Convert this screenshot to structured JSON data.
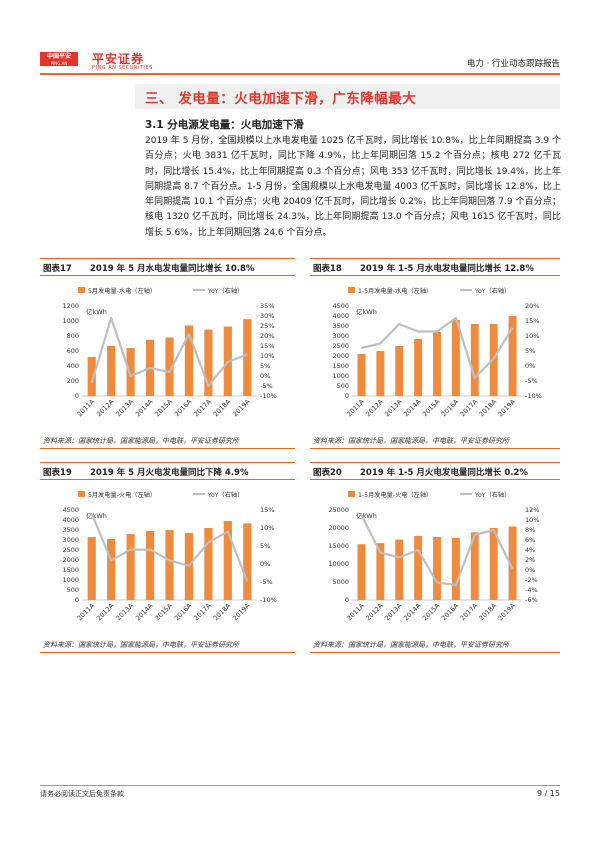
{
  "header": {
    "logo_cn": "中国平安",
    "logo_sub": "PING AN",
    "brand": "平安证券",
    "brand_en": "PING AN SECURITIES",
    "report_type": "电力 · 行业动态跟踪报告"
  },
  "section": {
    "title": "三、  发电量：火电加速下滑，广东降幅最大",
    "subtitle": "3.1  分电源发电量：火电加速下滑",
    "paragraph": "2019 年 5 月份，全国规模以上水电发电量 1025 亿千瓦时，同比增长 10.8%，比上年同期提高 3.9 个百分点；火电 3831 亿千瓦时，同比下降 4.9%，比上年同期回落 15.2 个百分点；核电 272 亿千瓦时，同比增长 15.4%，比上年同期提高 0.3 个百分点；风电 353 亿千瓦时，同比增长 19.4%，比上年同期提高 8.7 个百分点。1-5 月份，全国规模以上水电发电量 4003 亿千瓦时，同比增长 12.8%，比上年同期提高 10.1 个百分点；火电 20409 亿千瓦时，同比增长 0.2%，比上年同期回落 7.9 个百分点；核电 1320 亿千瓦时，同比增长 24.3%，比上年同期提高 13.0 个百分点；风电 1615 亿千瓦时，同比增长 5.6%，比上年同期回落 24.6 个百分点。"
  },
  "colors": {
    "accent": "#e86a1f",
    "bar": "#f08a3c",
    "line": "#bfbfbf",
    "brand_red": "#e2352b"
  },
  "chart_data": [
    {
      "type": "bar",
      "figure_label": "图表17",
      "title": "2019 年 5 月水电发电量同比增长 10.8%",
      "categories": [
        "2011A",
        "2012A",
        "2013A",
        "2014A",
        "2015A",
        "2016A",
        "2017A",
        "2018A",
        "2019A"
      ],
      "series": [
        {
          "name": "5月发电量-水电（左轴）",
          "kind": "bar",
          "axis": "left",
          "values": [
            520,
            670,
            640,
            750,
            780,
            940,
            885,
            925,
            1025
          ]
        },
        {
          "name": "YoY（右轴）",
          "kind": "line",
          "axis": "right",
          "values": [
            -3.5,
            29,
            0,
            4,
            2,
            21,
            -5,
            7,
            10.8
          ]
        }
      ],
      "unit_label": "亿kWh",
      "ylim_left": [
        0,
        1200
      ],
      "yticks_left": [
        0,
        200,
        400,
        600,
        800,
        1000,
        1200
      ],
      "ylim_right": [
        -10,
        35
      ],
      "yticks_right": [
        -10,
        -5,
        0,
        5,
        10,
        15,
        20,
        25,
        30,
        35
      ],
      "source": "资料来源：国家统计局，国家能源局，中电联，平安证券研究所"
    },
    {
      "type": "bar",
      "figure_label": "图表18",
      "title": "2019 年 1-5 月水电发电量同比增长 12.8%",
      "categories": [
        "2011A",
        "2012A",
        "2013A",
        "2014A",
        "2015A",
        "2016A",
        "2017A",
        "2018A",
        "2019A"
      ],
      "series": [
        {
          "name": "1-5月发电量-水电（左轴）",
          "kind": "bar",
          "axis": "left",
          "values": [
            2100,
            2250,
            2500,
            2850,
            3200,
            3800,
            3600,
            3600,
            4003
          ]
        },
        {
          "name": "YoY（右轴）",
          "kind": "line",
          "axis": "right",
          "values": [
            6,
            7.5,
            14,
            11.5,
            11.5,
            16,
            -4,
            2.5,
            12.8
          ]
        }
      ],
      "unit_label": "亿kWh",
      "ylim_left": [
        0,
        4500
      ],
      "yticks_left": [
        0,
        500,
        1000,
        1500,
        2000,
        2500,
        3000,
        3500,
        4000,
        4500
      ],
      "ylim_right": [
        -10,
        20
      ],
      "yticks_right": [
        -10,
        -5,
        0,
        5,
        10,
        15,
        20
      ],
      "source": "资料来源：国家统计局，国家能源局，中电联，平安证券研究所"
    },
    {
      "type": "bar",
      "figure_label": "图表19",
      "title": "2019 年 5 月火电发电量同比下降 4.9%",
      "categories": [
        "2011A",
        "2012A",
        "2013A",
        "2014A",
        "2015A",
        "2016A",
        "2017A",
        "2018A",
        "2019A"
      ],
      "series": [
        {
          "name": "5月发电量-火电（左轴）",
          "kind": "bar",
          "axis": "left",
          "values": [
            3150,
            3050,
            3300,
            3450,
            3500,
            3350,
            3600,
            3950,
            3831
          ]
        },
        {
          "name": "YoY（右轴）",
          "kind": "line",
          "axis": "right",
          "values": [
            14,
            1,
            4,
            4,
            1,
            -0.5,
            6,
            9,
            -4.9
          ]
        }
      ],
      "unit_label": "亿kWh",
      "ylim_left": [
        0,
        4500
      ],
      "yticks_left": [
        0,
        500,
        1000,
        1500,
        2000,
        2500,
        3000,
        3500,
        4000,
        4500
      ],
      "ylim_right": [
        -10,
        15
      ],
      "yticks_right": [
        -10,
        -5,
        0,
        5,
        10,
        15
      ],
      "source": "资料来源：国家统计局，国家能源局，中电联，平安证券研究所"
    },
    {
      "type": "bar",
      "figure_label": "图表20",
      "title": "2019 年 1-5 月火电发电量同比增长 0.2%",
      "categories": [
        "2011A",
        "2012A",
        "2013A",
        "2014A",
        "2015A",
        "2016A",
        "2017A",
        "2018A",
        "2019A"
      ],
      "series": [
        {
          "name": "1-5月发电量-火电（左轴）",
          "kind": "bar",
          "axis": "left",
          "values": [
            15500,
            15800,
            16800,
            17800,
            17500,
            17300,
            18800,
            20000,
            20409
          ]
        },
        {
          "name": "YoY（右轴）",
          "kind": "line",
          "axis": "right",
          "values": [
            11,
            3.5,
            2.5,
            4,
            -2.5,
            -3,
            7,
            8,
            0.2
          ]
        }
      ],
      "unit_label": "亿kWh",
      "ylim_left": [
        0,
        25000
      ],
      "yticks_left": [
        0,
        5000,
        10000,
        15000,
        20000,
        25000
      ],
      "ylim_right": [
        -6,
        12
      ],
      "yticks_right": [
        -6,
        -4,
        -2,
        0,
        2,
        4,
        6,
        8,
        10,
        12
      ],
      "source": "资料来源：国家统计局，国家能源局，中电联，平安证券研究所"
    }
  ],
  "footer": {
    "disclaimer": "请务必阅读正文后免责条款",
    "page": "9 / 15"
  }
}
